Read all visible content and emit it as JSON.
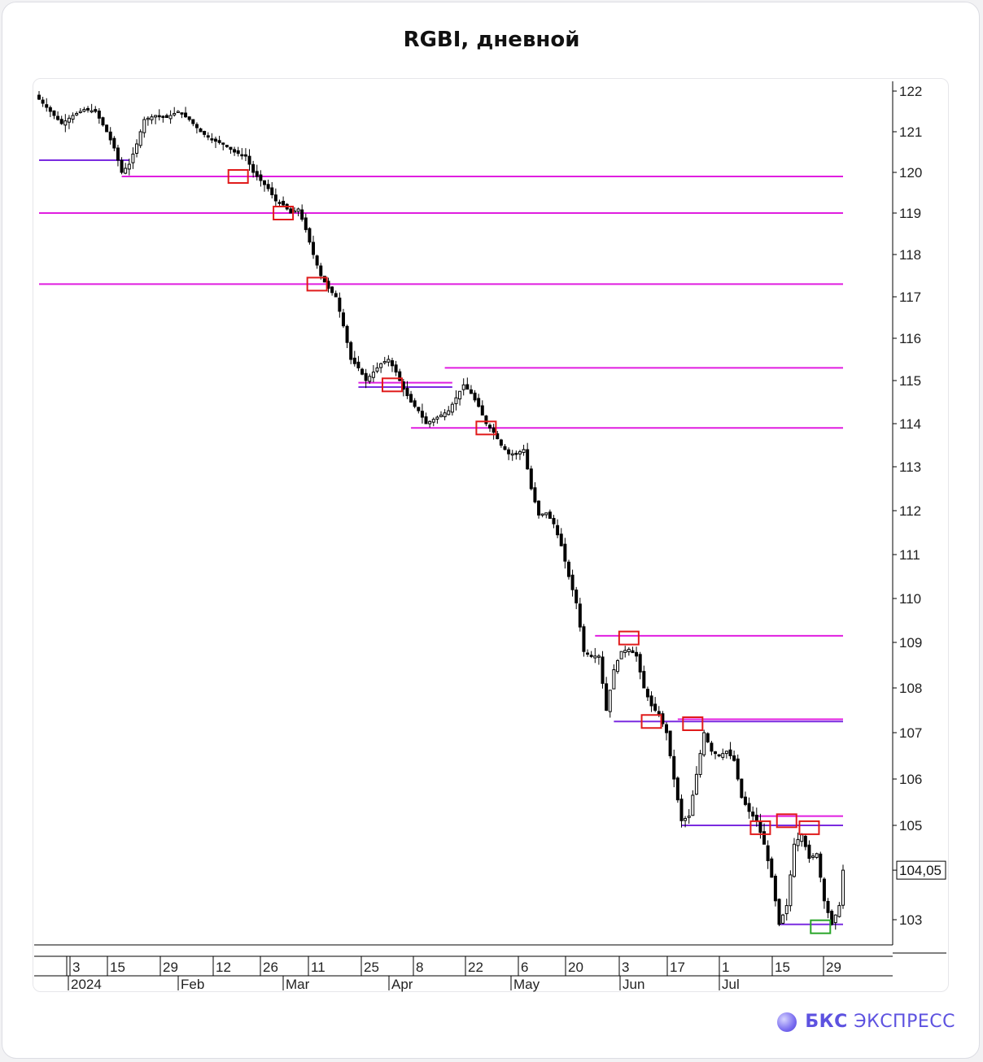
{
  "title": "RGBI, дневной",
  "brand": {
    "bold": "БКС",
    "rest": "ЭКСПРЕСС"
  },
  "chart_data": {
    "type": "candlestick",
    "title": "RGBI, дневной",
    "ylim": [
      102.5,
      122.2
    ],
    "y_ticks": [
      122,
      121,
      120,
      119,
      118,
      117,
      116,
      115,
      114,
      113,
      112,
      111,
      110,
      109,
      108,
      107,
      106,
      105,
      103
    ],
    "last_price_label": "104,05",
    "last_price": 104.05,
    "x_day_labels": [
      "3",
      "15",
      "29",
      "12",
      "26",
      "11",
      "25",
      "8",
      "22",
      "6",
      "20",
      "3",
      "17",
      "1",
      "15",
      "29"
    ],
    "x_month_labels": [
      "2024",
      "Feb",
      "Mar",
      "Apr",
      "May",
      "Jun",
      "Jul"
    ],
    "close_path": [
      [
        0,
        121.8
      ],
      [
        3,
        121.5
      ],
      [
        6,
        121.2
      ],
      [
        9,
        121.4
      ],
      [
        12,
        121.55
      ],
      [
        15,
        121.5
      ],
      [
        18,
        121.0
      ],
      [
        20,
        120.6
      ],
      [
        22,
        120.0
      ],
      [
        24,
        120.2
      ],
      [
        26,
        120.7
      ],
      [
        28,
        121.3
      ],
      [
        31,
        121.4
      ],
      [
        34,
        121.35
      ],
      [
        37,
        121.5
      ],
      [
        40,
        121.3
      ],
      [
        43,
        121.0
      ],
      [
        46,
        120.8
      ],
      [
        49,
        120.7
      ],
      [
        52,
        120.5
      ],
      [
        55,
        120.4
      ],
      [
        57,
        120.0
      ],
      [
        59,
        119.8
      ],
      [
        61,
        119.6
      ],
      [
        63,
        119.3
      ],
      [
        65,
        119.2
      ],
      [
        67,
        119.0
      ],
      [
        69,
        119.1
      ],
      [
        71,
        118.6
      ],
      [
        73,
        118.0
      ],
      [
        75,
        117.5
      ],
      [
        77,
        117.2
      ],
      [
        79,
        117.0
      ],
      [
        81,
        116.3
      ],
      [
        83,
        115.5
      ],
      [
        85,
        115.3
      ],
      [
        87,
        115.0
      ],
      [
        89,
        115.2
      ],
      [
        91,
        115.4
      ],
      [
        93,
        115.5
      ],
      [
        95,
        115.2
      ],
      [
        97,
        114.8
      ],
      [
        99,
        114.5
      ],
      [
        101,
        114.3
      ],
      [
        103,
        114.0
      ],
      [
        105,
        114.1
      ],
      [
        107,
        114.2
      ],
      [
        109,
        114.3
      ],
      [
        111,
        114.6
      ],
      [
        113,
        114.9
      ],
      [
        115,
        114.7
      ],
      [
        117,
        114.4
      ],
      [
        119,
        114.0
      ],
      [
        121,
        113.8
      ],
      [
        123,
        113.5
      ],
      [
        125,
        113.3
      ],
      [
        127,
        113.3
      ],
      [
        129,
        113.4
      ],
      [
        131,
        112.5
      ],
      [
        133,
        111.9
      ],
      [
        135,
        111.95
      ],
      [
        137,
        111.7
      ],
      [
        139,
        111.2
      ],
      [
        141,
        110.5
      ],
      [
        143,
        109.9
      ],
      [
        145,
        108.8
      ],
      [
        147,
        108.7
      ],
      [
        149,
        108.7
      ],
      [
        151,
        107.5
      ],
      [
        153,
        108.4
      ],
      [
        155,
        108.8
      ],
      [
        157,
        108.85
      ],
      [
        159,
        108.7
      ],
      [
        161,
        108.0
      ],
      [
        163,
        107.6
      ],
      [
        165,
        107.4
      ],
      [
        167,
        107.0
      ],
      [
        169,
        106.0
      ],
      [
        171,
        105.1
      ],
      [
        173,
        105.2
      ],
      [
        175,
        106.1
      ],
      [
        177,
        107.0
      ],
      [
        179,
        106.6
      ],
      [
        181,
        106.5
      ],
      [
        183,
        106.6
      ],
      [
        185,
        106.4
      ],
      [
        187,
        105.6
      ],
      [
        189,
        105.3
      ],
      [
        191,
        105.1
      ],
      [
        193,
        104.6
      ],
      [
        195,
        103.9
      ],
      [
        197,
        102.9
      ],
      [
        199,
        103.3
      ],
      [
        201,
        104.6
      ],
      [
        203,
        104.8
      ],
      [
        205,
        104.3
      ],
      [
        207,
        104.4
      ],
      [
        209,
        103.4
      ],
      [
        211,
        102.9
      ],
      [
        213,
        103.3
      ],
      [
        214,
        104.05
      ]
    ],
    "levels": [
      {
        "price": 120.3,
        "x_from": 0,
        "x_to": 24,
        "color": "#7a2be0"
      },
      {
        "price": 119.9,
        "x_from": 22,
        "x_to": 214,
        "color": "#e01ee0"
      },
      {
        "price": 119.0,
        "x_from": 0,
        "x_to": 214,
        "color": "#e01ee0"
      },
      {
        "price": 117.3,
        "x_from": 0,
        "x_to": 214,
        "color": "#e01ee0"
      },
      {
        "price": 115.3,
        "x_from": 108,
        "x_to": 214,
        "color": "#e01ee0"
      },
      {
        "price": 114.95,
        "x_from": 85,
        "x_to": 110,
        "color": "#e01ee0"
      },
      {
        "price": 114.85,
        "x_from": 85,
        "x_to": 110,
        "color": "#7a2be0"
      },
      {
        "price": 113.9,
        "x_from": 99,
        "x_to": 214,
        "color": "#e01ee0"
      },
      {
        "price": 109.15,
        "x_from": 148,
        "x_to": 214,
        "color": "#e01ee0"
      },
      {
        "price": 107.3,
        "x_from": 170,
        "x_to": 214,
        "color": "#e01ee0"
      },
      {
        "price": 107.25,
        "x_from": 153,
        "x_to": 214,
        "color": "#7a2be0"
      },
      {
        "price": 105.2,
        "x_from": 191,
        "x_to": 214,
        "color": "#e01ee0"
      },
      {
        "price": 105.0,
        "x_from": 171,
        "x_to": 214,
        "color": "#7a2be0"
      },
      {
        "price": 102.9,
        "x_from": 197,
        "x_to": 214,
        "color": "#7a2be0"
      }
    ],
    "markers": [
      {
        "price": 119.9,
        "x": 53,
        "color": "#e01b1b"
      },
      {
        "price": 119.0,
        "x": 65,
        "color": "#e01b1b"
      },
      {
        "price": 117.3,
        "x": 74,
        "color": "#e01b1b"
      },
      {
        "price": 114.9,
        "x": 94,
        "color": "#e01b1b"
      },
      {
        "price": 113.9,
        "x": 119,
        "color": "#e01b1b"
      },
      {
        "price": 109.1,
        "x": 157,
        "color": "#e01b1b"
      },
      {
        "price": 107.25,
        "x": 163,
        "color": "#e01b1b"
      },
      {
        "price": 107.2,
        "x": 174,
        "color": "#e01b1b"
      },
      {
        "price": 104.95,
        "x": 192,
        "color": "#e01b1b"
      },
      {
        "price": 105.1,
        "x": 199,
        "color": "#e01b1b"
      },
      {
        "price": 104.95,
        "x": 205,
        "color": "#e01b1b"
      },
      {
        "price": 102.85,
        "x": 208,
        "color": "#2aa62a"
      }
    ],
    "colors": {
      "bear": "#000000",
      "bull": "#ffffff",
      "wick": "#000000",
      "grid_text": "#222222"
    }
  }
}
